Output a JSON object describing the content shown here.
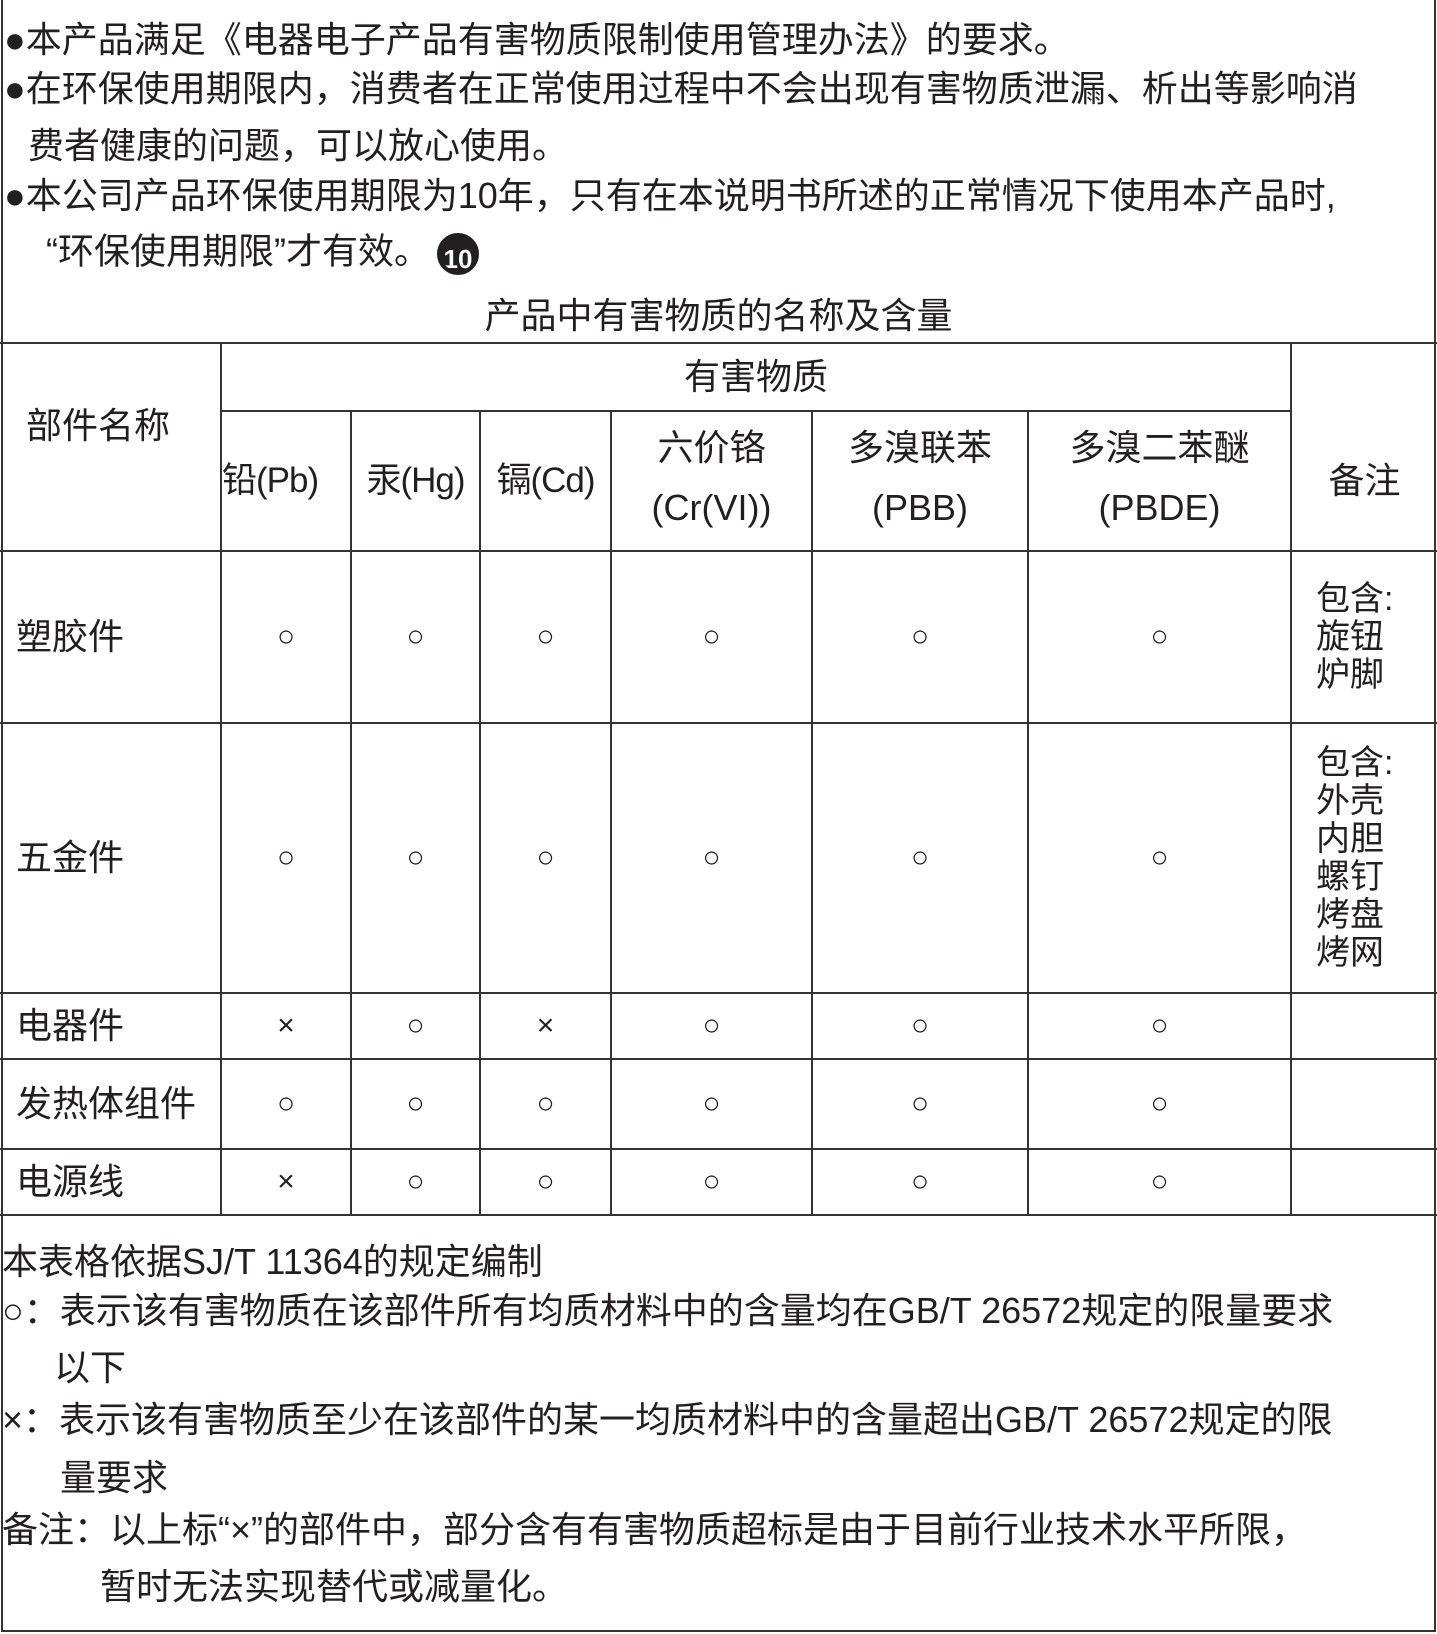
{
  "intro": {
    "line1": "●本产品满足《电器电子产品有害物质限制使用管理办法》的要求。",
    "line2a": "●在环保使用期限内，消费者在正常使用过程中不会出现有害物质泄漏、析出等影响消",
    "line2b": "费者健康的问题，可以放心使用。",
    "line3a": "●本公司产品环保使用期限为10年，只有在本说明书所述的正常情况下使用本产品时,",
    "line3b": "“环保使用期限”才有效。",
    "badge": "10"
  },
  "table": {
    "title": "产品中有害物质的名称及含量",
    "part_header": "部件名称",
    "group_header": "有害物质",
    "note_header": "备注",
    "substances": [
      {
        "line1": "铅(Pb)",
        "line2": ""
      },
      {
        "line1": "汞(Hg)",
        "line2": ""
      },
      {
        "line1": "镉(Cd)",
        "line2": ""
      },
      {
        "line1": "六价铬",
        "line2": "(Cr(VI))"
      },
      {
        "line1": "多溴联苯",
        "line2": "(PBB)"
      },
      {
        "line1": "多溴二苯醚",
        "line2": "(PBDE)"
      }
    ],
    "rows": [
      {
        "part": "塑胶件",
        "marks": [
          "○",
          "○",
          "○",
          "○",
          "○",
          "○"
        ],
        "note": [
          "包含:",
          "旋钮",
          "炉脚"
        ]
      },
      {
        "part": "五金件",
        "marks": [
          "○",
          "○",
          "○",
          "○",
          "○",
          "○"
        ],
        "note": [
          "包含:",
          "外壳",
          "内胆",
          "螺钉",
          "烤盘",
          "烤网"
        ]
      },
      {
        "part": "电器件",
        "marks": [
          "×",
          "○",
          "×",
          "○",
          "○",
          "○"
        ],
        "note": []
      },
      {
        "part": "发热体组件",
        "marks": [
          "○",
          "○",
          "○",
          "○",
          "○",
          "○"
        ],
        "note": []
      },
      {
        "part": "电源线",
        "marks": [
          "×",
          "○",
          "○",
          "○",
          "○",
          "○"
        ],
        "note": []
      }
    ]
  },
  "footer": {
    "l1": "本表格依据SJ/T 11364的规定编制",
    "l2a": "○：表示该有害物质在该部件所有均质材料中的含量均在GB/T 26572规定的限量要求",
    "l2b": "以下",
    "l3a": "×：表示该有害物质至少在该部件的某一均质材料中的含量超出GB/T 26572规定的限",
    "l3b": "量要求",
    "l4a": "备注：以上标“×”的部件中，部分含有有害物质超标是由于目前行业技术水平所限，",
    "l4b": "暂时无法实现替代或减量化。"
  }
}
